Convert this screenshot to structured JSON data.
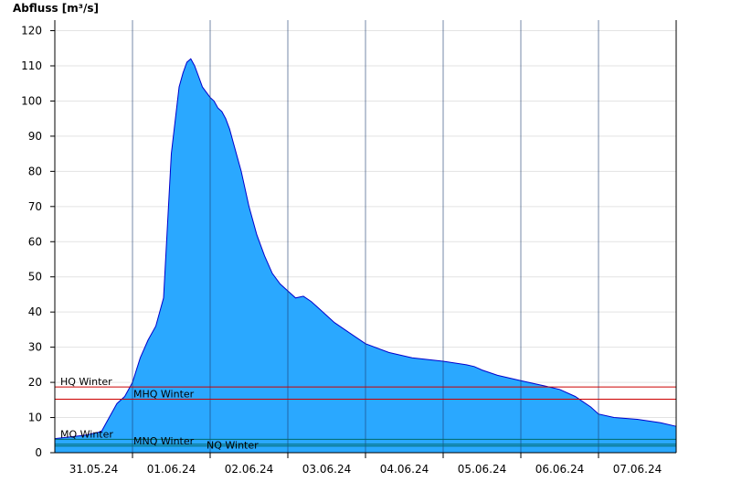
{
  "chart_data": {
    "type": "area",
    "ylabel": "Abfluss [m³/s]",
    "xlabel": "",
    "ylim": [
      0,
      123
    ],
    "xlim": [
      0,
      8
    ],
    "y_ticks": [
      0,
      10,
      20,
      30,
      40,
      50,
      60,
      70,
      80,
      90,
      100,
      110,
      120
    ],
    "grid": true,
    "x_labels": [
      "31.05.24",
      "01.06.24",
      "02.06.24",
      "03.06.24",
      "04.06.24",
      "05.06.24",
      "06.06.24",
      "07.06.24"
    ],
    "x_label_positions": [
      0.5,
      1.5,
      2.5,
      3.5,
      4.5,
      5.5,
      6.5,
      7.5
    ],
    "day_boundaries": [
      1,
      2,
      3,
      4,
      5,
      6,
      7
    ],
    "series": [
      {
        "x": [
          0,
          0.2,
          0.4,
          0.6,
          0.7,
          0.8,
          0.9,
          1.0,
          1.1,
          1.2,
          1.3,
          1.4,
          1.5,
          1.6,
          1.65,
          1.7,
          1.75,
          1.8,
          1.85,
          1.9,
          2.0,
          2.05,
          2.1,
          2.15,
          2.2,
          2.25,
          2.3,
          2.4,
          2.5,
          2.6,
          2.7,
          2.8,
          2.9,
          3.0,
          3.1,
          3.2,
          3.3,
          3.4,
          3.6,
          3.8,
          4.0,
          4.3,
          4.6,
          5.0,
          5.3,
          5.4,
          5.45,
          5.5,
          5.7,
          6.0,
          6.3,
          6.5,
          6.7,
          6.9,
          7.0,
          7.2,
          7.5,
          7.8,
          8.0
        ],
        "values": [
          4,
          4.5,
          5,
          6,
          10,
          14,
          16,
          20,
          27,
          32,
          36,
          44,
          85,
          104,
          108,
          111,
          112,
          110,
          107,
          104,
          101,
          100,
          98,
          97,
          95,
          92,
          88,
          80,
          70,
          62,
          56,
          51,
          48,
          46,
          44,
          44.5,
          43,
          41,
          37,
          34,
          31,
          28.5,
          27,
          26,
          25,
          24.5,
          24,
          23.5,
          22,
          20.5,
          19,
          18,
          16,
          13,
          11,
          10,
          9.5,
          8.5,
          7.5
        ]
      }
    ],
    "reference_lines": [
      {
        "label": "HQ Winter",
        "value": 18.7,
        "color": "#cc0000"
      },
      {
        "label": "MHQ Winter",
        "value": 15.2,
        "color": "#cc0000"
      },
      {
        "label": "MQ Winter",
        "value": 3.8,
        "color": "#006b6b"
      },
      {
        "label": "MNQ Winter",
        "value": 2.4,
        "color": "#006b6b"
      },
      {
        "label": "NQ Winter",
        "value": 1.9,
        "color": "#006b6b"
      }
    ],
    "colors": {
      "area_fill": "#2aa8ff",
      "area_stroke": "#0000cc",
      "grid": "#e3e3e3",
      "axis": "#000000"
    }
  }
}
